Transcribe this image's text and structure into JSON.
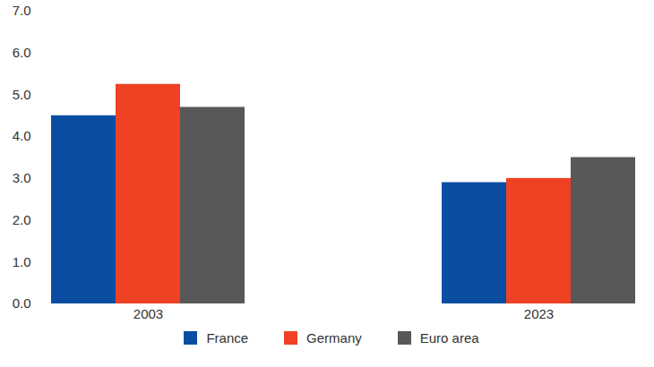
{
  "chart_data": {
    "type": "bar",
    "categories": [
      "2003",
      "2023"
    ],
    "series": [
      {
        "name": "France",
        "color": "#0a4ea2",
        "values": [
          4.5,
          2.9
        ]
      },
      {
        "name": "Germany",
        "color": "#ef4123",
        "values": [
          5.25,
          3.0
        ]
      },
      {
        "name": "Euro area",
        "color": "#58585a",
        "values": [
          4.7,
          3.5
        ]
      }
    ],
    "ylim": [
      0,
      7
    ],
    "yticks": [
      0,
      1,
      2,
      3,
      4,
      5,
      6,
      7
    ],
    "grid": false,
    "legend": "bottom"
  }
}
